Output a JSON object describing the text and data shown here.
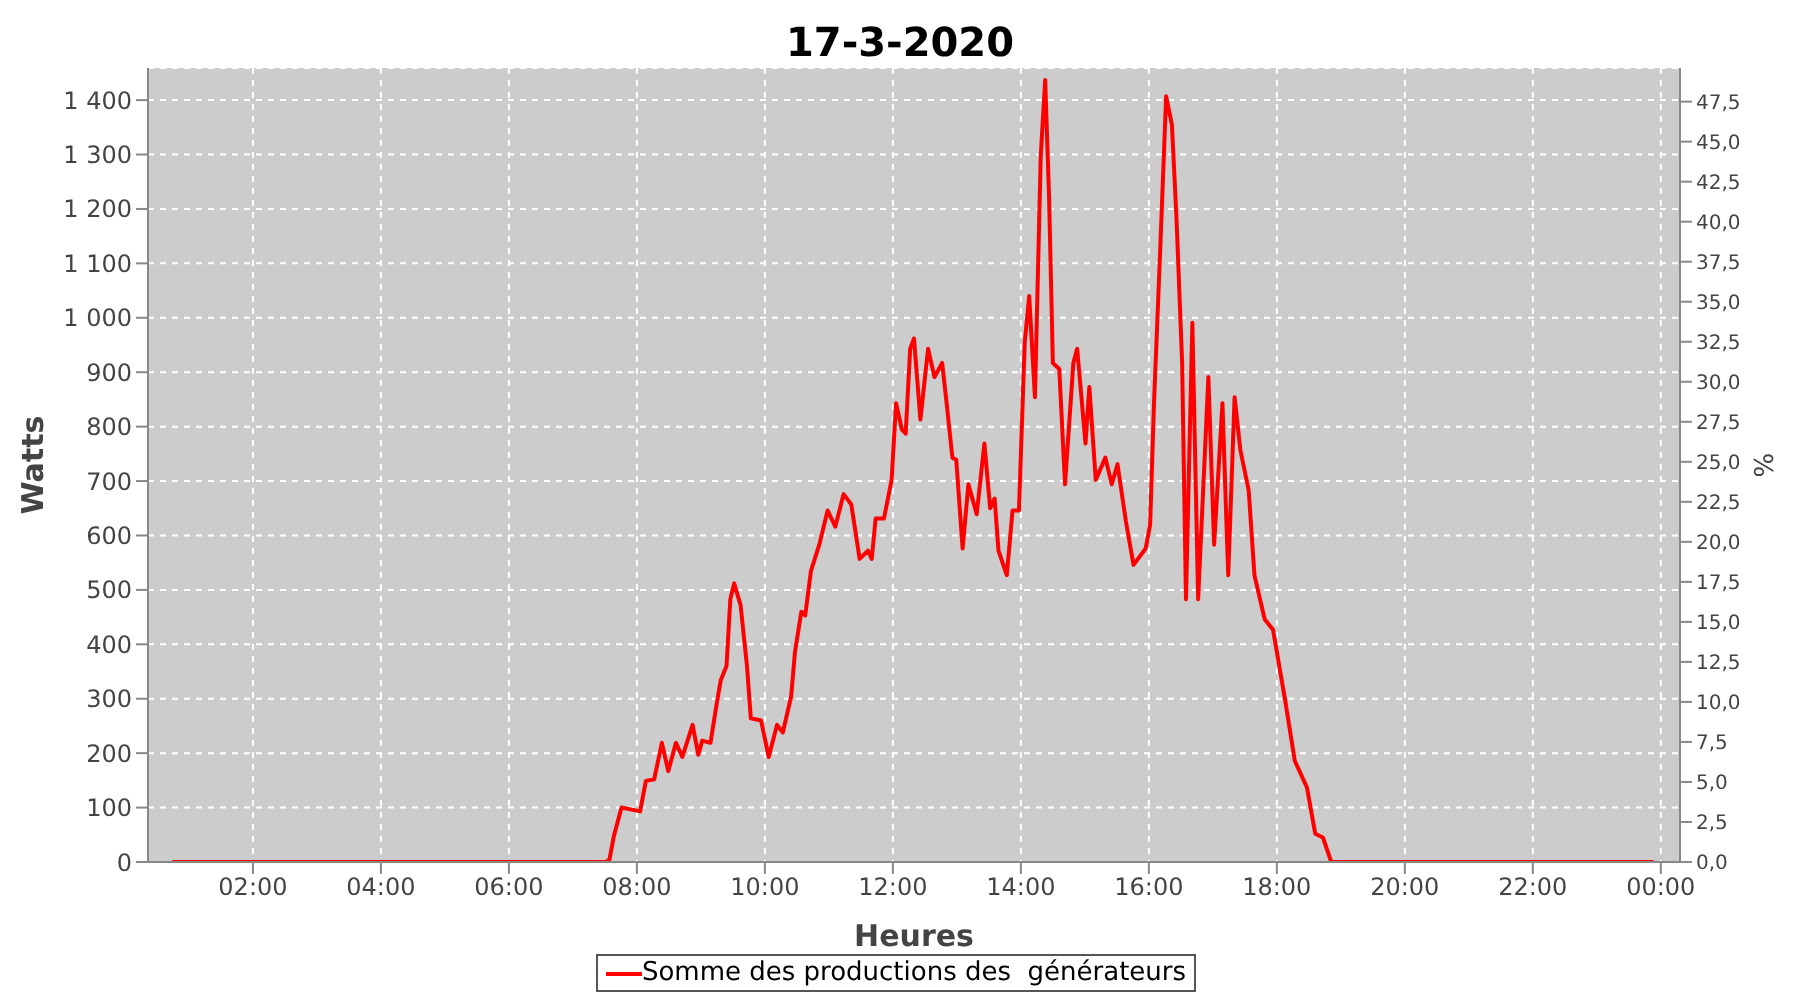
{
  "chart_data": {
    "type": "line",
    "title": "17-3-2020",
    "xlabel": "Heures",
    "ylabel": "Watts",
    "y2label": "%",
    "x": [
      0.74,
      7.51,
      7.57,
      7.64,
      7.76,
      8.05,
      8.14,
      8.27,
      8.39,
      8.49,
      8.61,
      8.71,
      8.87,
      8.96,
      9.02,
      9.15,
      9.24,
      9.31,
      9.4,
      9.46,
      9.52,
      9.62,
      9.72,
      9.78,
      9.94,
      10.06,
      10.19,
      10.28,
      10.41,
      10.47,
      10.57,
      10.63,
      10.72,
      10.85,
      10.98,
      11.1,
      11.23,
      11.35,
      11.48,
      11.61,
      11.67,
      11.73,
      11.86,
      11.98,
      12.05,
      12.14,
      12.2,
      12.27,
      12.33,
      12.43,
      12.55,
      12.65,
      12.77,
      12.84,
      12.93,
      12.99,
      13.09,
      13.18,
      13.31,
      13.43,
      13.52,
      13.59,
      13.65,
      13.78,
      13.87,
      13.97,
      14.06,
      14.13,
      14.22,
      14.31,
      14.38,
      14.44,
      14.5,
      14.6,
      14.69,
      14.82,
      14.88,
      15.01,
      15.07,
      15.17,
      15.32,
      15.42,
      15.51,
      15.64,
      15.76,
      15.95,
      16.02,
      16.08,
      16.17,
      16.27,
      16.36,
      16.43,
      16.52,
      16.58,
      16.68,
      16.77,
      16.93,
      17.02,
      17.15,
      17.24,
      17.34,
      17.43,
      17.56,
      17.65,
      17.81,
      17.94,
      18.13,
      18.28,
      18.47,
      18.6,
      18.72,
      18.85,
      23.89
    ],
    "series": [
      {
        "name": "Somme des productions des  générateurs",
        "color": "#ff0000",
        "values": [
          0,
          0,
          4,
          48,
          100,
          93,
          149,
          152,
          219,
          167,
          219,
          193,
          252,
          197,
          223,
          219,
          286,
          334,
          360,
          483,
          512,
          472,
          360,
          264,
          260,
          193,
          252,
          238,
          304,
          386,
          460,
          453,
          535,
          583,
          646,
          616,
          676,
          657,
          557,
          572,
          557,
          631,
          631,
          702,
          843,
          795,
          787,
          943,
          962,
          813,
          943,
          891,
          917,
          843,
          743,
          739,
          576,
          694,
          639,
          769,
          650,
          668,
          572,
          527,
          646,
          646,
          954,
          1040,
          854,
          1296,
          1437,
          1225,
          917,
          906,
          694,
          917,
          943,
          769,
          873,
          702,
          743,
          694,
          731,
          627,
          546,
          576,
          620,
          843,
          1103,
          1407,
          1355,
          1188,
          917,
          483,
          991,
          483,
          891,
          583,
          843,
          527,
          854,
          757,
          683,
          527,
          446,
          427,
          297,
          186,
          137,
          52,
          45,
          0,
          0
        ]
      }
    ],
    "xlim": [
      0.36,
      24.3
    ],
    "xticks": [
      {
        "value": 2,
        "label": "02:00"
      },
      {
        "value": 4,
        "label": "04:00"
      },
      {
        "value": 6,
        "label": "06:00"
      },
      {
        "value": 8,
        "label": "08:00"
      },
      {
        "value": 10,
        "label": "10:00"
      },
      {
        "value": 12,
        "label": "12:00"
      },
      {
        "value": 14,
        "label": "14:00"
      },
      {
        "value": 16,
        "label": "16:00"
      },
      {
        "value": 18,
        "label": "18:00"
      },
      {
        "value": 20,
        "label": "20:00"
      },
      {
        "value": 22,
        "label": "22:00"
      },
      {
        "value": 24,
        "label": "00:00"
      }
    ],
    "ylim": [
      0,
      1459
    ],
    "yticks": [
      0,
      100,
      200,
      300,
      400,
      500,
      600,
      700,
      800,
      900,
      {
        "value": 1000,
        "label": "1 000"
      },
      {
        "value": 1100,
        "label": "1 100"
      },
      {
        "value": 1200,
        "label": "1 200"
      },
      {
        "value": 1300,
        "label": "1 300"
      },
      {
        "value": 1400,
        "label": "1 400"
      }
    ],
    "y2lim": [
      0,
      49.6
    ],
    "y2ticks": [
      {
        "value": 0,
        "label": "0,0"
      },
      {
        "value": 2.5,
        "label": "2,5"
      },
      {
        "value": 5,
        "label": "5,0"
      },
      {
        "value": 7.5,
        "label": "7,5"
      },
      {
        "value": 10,
        "label": "10,0"
      },
      {
        "value": 12.5,
        "label": "12,5"
      },
      {
        "value": 15,
        "label": "15,0"
      },
      {
        "value": 17.5,
        "label": "17,5"
      },
      {
        "value": 20,
        "label": "20,0"
      },
      {
        "value": 22.5,
        "label": "22,5"
      },
      {
        "value": 25,
        "label": "25,0"
      },
      {
        "value": 27.5,
        "label": "27,5"
      },
      {
        "value": 30,
        "label": "30,0"
      },
      {
        "value": 32.5,
        "label": "32,5"
      },
      {
        "value": 35,
        "label": "35,0"
      },
      {
        "value": 37.5,
        "label": "37,5"
      },
      {
        "value": 40,
        "label": "40,0"
      },
      {
        "value": 42.5,
        "label": "42,5"
      },
      {
        "value": 45,
        "label": "45,0"
      },
      {
        "value": 47.5,
        "label": "47,5"
      }
    ],
    "grid": true,
    "legend": "bottom",
    "marker": "none",
    "line_style": "solid"
  }
}
